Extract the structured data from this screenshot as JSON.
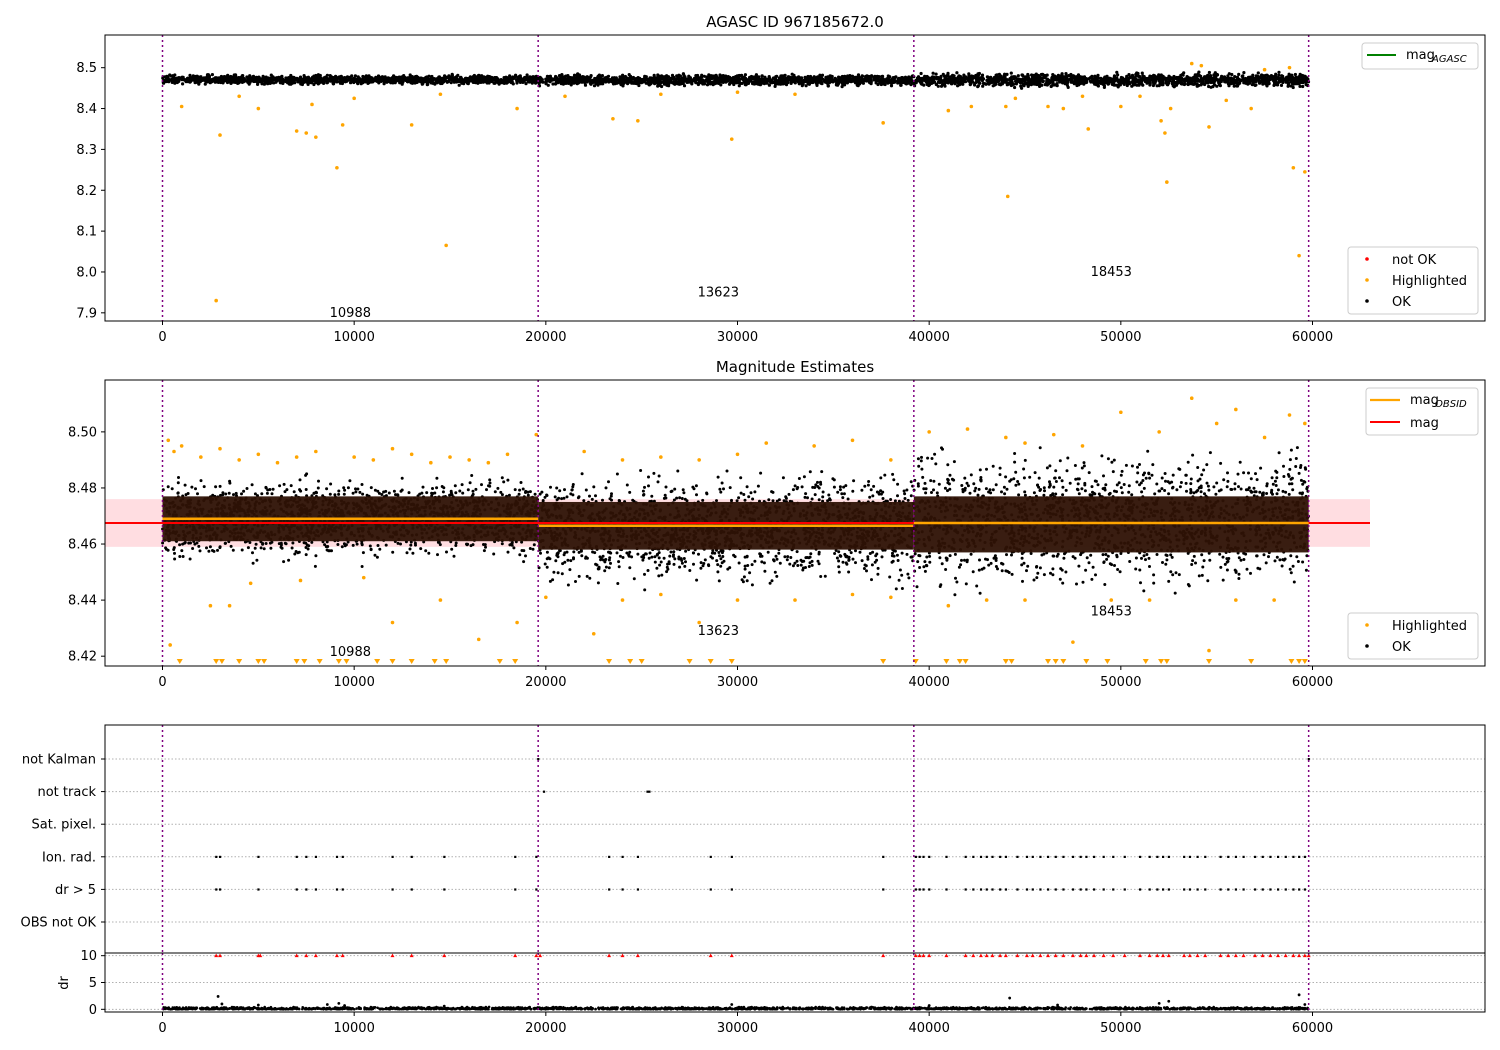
{
  "figure": {
    "background": "#ffffff"
  },
  "chart_data": [
    {
      "type": "scatter",
      "title": "AGASC ID 967185672.0",
      "xlim": [
        -3000,
        69000
      ],
      "ylim": [
        7.88,
        8.58
      ],
      "xticks": [
        0,
        10000,
        20000,
        30000,
        40000,
        50000,
        60000
      ],
      "yticks": [
        7.9,
        8.0,
        8.1,
        8.2,
        8.3,
        8.4,
        8.5
      ],
      "obs_boundaries": [
        0,
        19600,
        39200,
        59800
      ],
      "obs_labels": [
        {
          "text": "10988",
          "x": 9800,
          "y": 7.9
        },
        {
          "text": "13623",
          "x": 29000,
          "y": 7.95
        },
        {
          "text": "18453",
          "x": 49500,
          "y": 8.0
        }
      ],
      "ok_band": [
        {
          "x0": 0,
          "x1": 19600,
          "lo": 8.456,
          "hi": 8.485
        },
        {
          "x0": 19600,
          "x1": 39200,
          "lo": 8.452,
          "hi": 8.487
        },
        {
          "x0": 39200,
          "x1": 59800,
          "lo": 8.448,
          "hi": 8.492
        }
      ],
      "highlighted_points": [
        [
          2800,
          7.93
        ],
        [
          14800,
          8.065
        ],
        [
          44100,
          8.185
        ],
        [
          52400,
          8.22
        ],
        [
          9100,
          8.255
        ],
        [
          59000,
          8.255
        ],
        [
          59600,
          8.245
        ],
        [
          59300,
          8.04
        ],
        [
          7000,
          8.345
        ],
        [
          7500,
          8.34
        ],
        [
          8000,
          8.33
        ],
        [
          3000,
          8.335
        ],
        [
          13000,
          8.36
        ],
        [
          9400,
          8.36
        ],
        [
          24800,
          8.37
        ],
        [
          23500,
          8.375
        ],
        [
          29700,
          8.325
        ],
        [
          37600,
          8.365
        ],
        [
          48300,
          8.35
        ],
        [
          52300,
          8.34
        ],
        [
          54600,
          8.355
        ],
        [
          52100,
          8.37
        ],
        [
          1000,
          8.405
        ],
        [
          5000,
          8.4
        ],
        [
          7800,
          8.41
        ],
        [
          18500,
          8.4
        ],
        [
          41000,
          8.395
        ],
        [
          42200,
          8.405
        ],
        [
          44000,
          8.405
        ],
        [
          46200,
          8.405
        ],
        [
          47000,
          8.4
        ],
        [
          50000,
          8.405
        ],
        [
          52600,
          8.4
        ],
        [
          56800,
          8.4
        ],
        [
          55500,
          8.42
        ],
        [
          53700,
          8.51
        ],
        [
          54200,
          8.505
        ],
        [
          4000,
          8.43
        ],
        [
          10000,
          8.425
        ],
        [
          14500,
          8.435
        ],
        [
          21000,
          8.43
        ],
        [
          26000,
          8.435
        ],
        [
          30000,
          8.44
        ],
        [
          33000,
          8.435
        ],
        [
          44500,
          8.425
        ],
        [
          48000,
          8.43
        ],
        [
          51000,
          8.43
        ],
        [
          57500,
          8.495
        ],
        [
          58800,
          8.5
        ]
      ],
      "notok_points": [],
      "legend_top": [
        {
          "label": "mag",
          "sub": "AGASC",
          "color": "#008000",
          "kind": "line"
        }
      ],
      "legend_bottom": [
        {
          "label": "not OK",
          "color": "#ff0000"
        },
        {
          "label": "Highlighted",
          "color": "#ffa500"
        },
        {
          "label": "OK",
          "color": "#000000"
        }
      ]
    },
    {
      "type": "scatter",
      "title": "Magnitude Estimates",
      "xlim": [
        -3000,
        69000
      ],
      "ylim": [
        8.4165,
        8.5185
      ],
      "xticks": [
        0,
        10000,
        20000,
        30000,
        40000,
        50000,
        60000
      ],
      "yticks": [
        8.42,
        8.44,
        8.46,
        8.48,
        8.5
      ],
      "obs_boundaries": [
        0,
        19600,
        39200,
        59800
      ],
      "obs_labels": [
        {
          "text": "10988",
          "x": 9800,
          "y": 8.4215
        },
        {
          "text": "13623",
          "x": 29000,
          "y": 8.429
        },
        {
          "text": "18453",
          "x": 49500,
          "y": 8.436
        }
      ],
      "mag": 8.4675,
      "mag_err": 0.0085,
      "mag_obsid": [
        {
          "x0": 0,
          "x1": 19600,
          "value": 8.469
        },
        {
          "x0": 19600,
          "x1": 39200,
          "value": 8.4665
        },
        {
          "x0": 39200,
          "x1": 59800,
          "value": 8.4675
        }
      ],
      "obsid_bands": [
        {
          "x0": 0,
          "x1": 19600,
          "lo": 8.461,
          "hi": 8.477
        },
        {
          "x0": 19600,
          "x1": 39200,
          "lo": 8.458,
          "hi": 8.475
        },
        {
          "x0": 39200,
          "x1": 59800,
          "lo": 8.457,
          "hi": 8.477
        }
      ],
      "ok_spread": [
        {
          "x0": 0,
          "x1": 19600,
          "lo": 8.451,
          "hi": 8.487
        },
        {
          "x0": 19600,
          "x1": 39200,
          "lo": 8.442,
          "hi": 8.489
        },
        {
          "x0": 39200,
          "x1": 59800,
          "lo": 8.44,
          "hi": 8.497
        }
      ],
      "highlighted_points": [
        [
          300,
          8.497
        ],
        [
          600,
          8.493
        ],
        [
          1000,
          8.495
        ],
        [
          2000,
          8.491
        ],
        [
          3000,
          8.494
        ],
        [
          4000,
          8.49
        ],
        [
          5000,
          8.492
        ],
        [
          6000,
          8.489
        ],
        [
          7000,
          8.491
        ],
        [
          8000,
          8.493
        ],
        [
          10000,
          8.491
        ],
        [
          11000,
          8.49
        ],
        [
          12000,
          8.494
        ],
        [
          13000,
          8.492
        ],
        [
          14000,
          8.489
        ],
        [
          15000,
          8.491
        ],
        [
          16000,
          8.49
        ],
        [
          17000,
          8.489
        ],
        [
          18000,
          8.492
        ],
        [
          19500,
          8.499
        ],
        [
          22000,
          8.493
        ],
        [
          24000,
          8.49
        ],
        [
          26000,
          8.491
        ],
        [
          28000,
          8.49
        ],
        [
          30000,
          8.492
        ],
        [
          31500,
          8.496
        ],
        [
          34000,
          8.495
        ],
        [
          36000,
          8.497
        ],
        [
          38000,
          8.49
        ],
        [
          40000,
          8.5
        ],
        [
          42000,
          8.501
        ],
        [
          44000,
          8.498
        ],
        [
          45000,
          8.496
        ],
        [
          46500,
          8.499
        ],
        [
          48000,
          8.495
        ],
        [
          50000,
          8.507
        ],
        [
          52000,
          8.5
        ],
        [
          53700,
          8.512
        ],
        [
          55000,
          8.503
        ],
        [
          56000,
          8.508
        ],
        [
          57500,
          8.498
        ],
        [
          58800,
          8.506
        ],
        [
          59600,
          8.503
        ],
        [
          400,
          8.424
        ],
        [
          2500,
          8.438
        ],
        [
          3500,
          8.438
        ],
        [
          4600,
          8.446
        ],
        [
          7200,
          8.447
        ],
        [
          10500,
          8.448
        ],
        [
          12000,
          8.432
        ],
        [
          14500,
          8.44
        ],
        [
          16500,
          8.426
        ],
        [
          18500,
          8.432
        ],
        [
          20000,
          8.441
        ],
        [
          22500,
          8.428
        ],
        [
          24000,
          8.44
        ],
        [
          26000,
          8.442
        ],
        [
          28000,
          8.432
        ],
        [
          30000,
          8.44
        ],
        [
          33000,
          8.44
        ],
        [
          36000,
          8.442
        ],
        [
          38000,
          8.441
        ],
        [
          41000,
          8.438
        ],
        [
          43000,
          8.44
        ],
        [
          45000,
          8.44
        ],
        [
          47500,
          8.425
        ],
        [
          49500,
          8.44
        ],
        [
          51500,
          8.44
        ],
        [
          54600,
          8.422
        ],
        [
          56000,
          8.44
        ],
        [
          58000,
          8.44
        ]
      ],
      "floor_markers": [
        900,
        2800,
        3100,
        4000,
        5000,
        5300,
        7000,
        7400,
        8200,
        9200,
        9600,
        11200,
        12000,
        13000,
        14200,
        14800,
        17600,
        18400,
        23300,
        24400,
        25000,
        27500,
        28600,
        29700,
        37600,
        39300,
        40900,
        41600,
        41900,
        44000,
        44300,
        46200,
        46600,
        47000,
        48200,
        49300,
        51300,
        52100,
        52400,
        54600,
        56800,
        58900,
        59300,
        59600
      ],
      "legend_top": [
        {
          "label": "mag",
          "sub": "OBSID",
          "color": "#ffa500",
          "kind": "line"
        },
        {
          "label": "mag",
          "sub": "",
          "color": "#ff0000",
          "kind": "line"
        }
      ],
      "legend_bottom": [
        {
          "label": "Highlighted",
          "color": "#ffa500"
        },
        {
          "label": "OK",
          "color": "#000000"
        }
      ]
    },
    {
      "type": "scatter",
      "title": "",
      "xlim": [
        -3000,
        69000
      ],
      "xticks": [
        0,
        10000,
        20000,
        30000,
        40000,
        50000,
        60000
      ],
      "obs_boundaries": [
        0,
        19600,
        39200,
        59800
      ],
      "flag_categories": [
        "not Kalman",
        "not track",
        "Sat. pixel.",
        "Ion. rad.",
        "dr > 5",
        "OBS not OK"
      ],
      "flag_points": {
        "not Kalman": [
          19600,
          59800
        ],
        "not track": [
          19900,
          25300,
          25400
        ],
        "Sat. pixel.": [],
        "Ion. rad.": [
          2800,
          3000,
          5000,
          7000,
          7500,
          8000,
          9100,
          9400,
          12000,
          13000,
          14700,
          18400,
          19500,
          23300,
          24000,
          24800,
          28600,
          29700,
          37600,
          39300,
          39500,
          39700,
          40000,
          40900,
          41900,
          42300,
          42700,
          43000,
          43300,
          43700,
          44000,
          44600,
          45100,
          45400,
          45800,
          46200,
          46600,
          47000,
          47500,
          47900,
          48200,
          48600,
          49100,
          49600,
          50200,
          51000,
          51500,
          51900,
          52200,
          52500,
          53300,
          53600,
          54000,
          54400,
          55200,
          55600,
          56000,
          56400,
          57000,
          57400,
          57800,
          58200,
          58600,
          59000,
          59300,
          59600
        ],
        "dr > 5": [
          2800,
          3000,
          5000,
          7000,
          7500,
          8000,
          9100,
          9400,
          12000,
          13000,
          14700,
          18400,
          19500,
          23300,
          24000,
          24800,
          28600,
          29700,
          37600,
          39300,
          39500,
          39700,
          40000,
          40900,
          41900,
          42300,
          42700,
          43000,
          43300,
          43700,
          44000,
          44600,
          45100,
          45400,
          45800,
          46200,
          46600,
          47000,
          47500,
          47900,
          48200,
          48600,
          49100,
          49600,
          50200,
          51000,
          51500,
          51900,
          52200,
          52500,
          53300,
          53600,
          54000,
          54400,
          55200,
          55600,
          56000,
          56400,
          57000,
          57400,
          57800,
          58200,
          58600,
          59000,
          59300,
          59600
        ],
        "OBS not OK": []
      }
    },
    {
      "type": "scatter",
      "title": "",
      "ylabel": "dr",
      "xlim": [
        -3000,
        69000
      ],
      "ylim": [
        -0.5,
        10.5
      ],
      "xticks": [
        0,
        10000,
        20000,
        30000,
        40000,
        50000,
        60000
      ],
      "yticks": [
        0,
        5,
        10
      ],
      "obs_boundaries": [
        0,
        19600,
        39200,
        59800
      ],
      "capped_at": 10,
      "high_dr_x": [
        2800,
        3000,
        5000,
        5100,
        7000,
        7500,
        8000,
        9100,
        9400,
        12000,
        13000,
        14700,
        18400,
        19500,
        19700,
        23300,
        24000,
        24800,
        28600,
        29700,
        37600,
        39300,
        39500,
        39700,
        40000,
        40900,
        41900,
        42300,
        42700,
        43000,
        43300,
        43700,
        44000,
        44600,
        45100,
        45400,
        45800,
        46200,
        46600,
        47000,
        47500,
        47900,
        48200,
        48600,
        49100,
        49600,
        50200,
        51000,
        51500,
        51900,
        52200,
        52500,
        53300,
        53600,
        54000,
        54400,
        55200,
        55600,
        56000,
        56400,
        57000,
        57400,
        57800,
        58200,
        58600,
        59000,
        59300,
        59600,
        59800
      ],
      "low_dr_outliers": [
        [
          2900,
          2.4
        ],
        [
          3100,
          1.0
        ],
        [
          5000,
          0.8
        ],
        [
          8600,
          0.9
        ],
        [
          9200,
          1.1
        ],
        [
          9500,
          0.7
        ],
        [
          14700,
          0.6
        ],
        [
          29700,
          0.9
        ],
        [
          40000,
          0.7
        ],
        [
          44200,
          2.1
        ],
        [
          46700,
          0.8
        ],
        [
          52000,
          1.1
        ],
        [
          52500,
          1.5
        ],
        [
          59300,
          2.7
        ],
        [
          59600,
          0.9
        ]
      ],
      "colors": {
        "capped": "#ff0000",
        "normal": "#000000"
      }
    }
  ]
}
